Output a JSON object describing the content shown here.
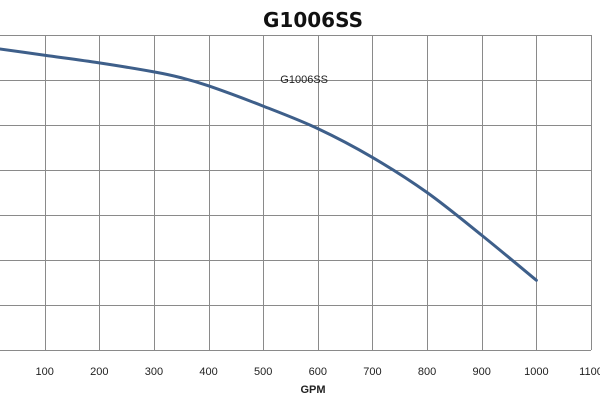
{
  "chart_data": {
    "type": "line",
    "title": "G1006SS",
    "xlabel": "GPM",
    "ylabel": "",
    "xlim": [
      0,
      1100
    ],
    "x_ticks": [
      100,
      200,
      300,
      400,
      500,
      600,
      700,
      800,
      900,
      1000,
      1100
    ],
    "x_tick_labels": [
      "100",
      "200",
      "300",
      "400",
      "500",
      "600",
      "700",
      "800",
      "900",
      "1000",
      "1100"
    ],
    "y_gridlines": 7,
    "grid": true,
    "legend": "none",
    "series": [
      {
        "color": "#3e5f8a",
        "x": [
          0,
          100,
          200,
          300,
          350,
          400,
          500,
          600,
          700,
          800,
          900,
          1000
        ],
        "y": [
          6.72,
          6.55,
          6.38,
          6.18,
          6.05,
          5.87,
          5.42,
          4.92,
          4.28,
          3.5,
          2.55,
          1.55
        ]
      }
    ],
    "annotations": [
      {
        "text": "G1006SS",
        "x": 575,
        "y": 5.93
      }
    ]
  }
}
